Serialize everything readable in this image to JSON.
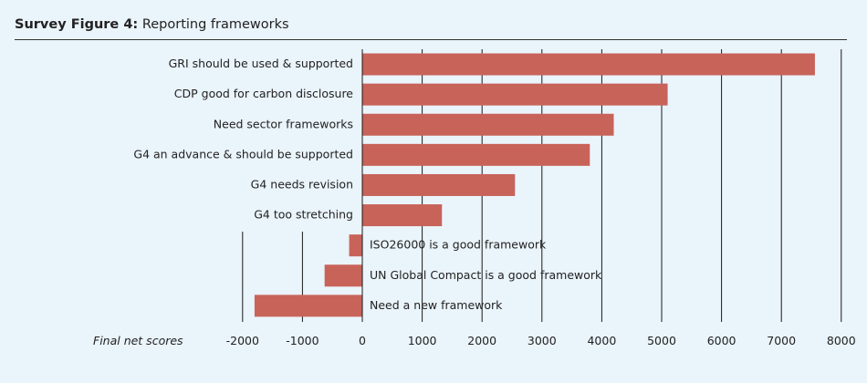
{
  "figure": {
    "label": "Survey Figure 4:",
    "title": "Reporting frameworks"
  },
  "colors": {
    "background": "#eaf4fb",
    "bar": "#c8635a",
    "grid": "#1a1a1a",
    "text": "#222222"
  },
  "chart_data": {
    "type": "bar",
    "orientation": "horizontal",
    "categories": [
      "GRI should be used & supported",
      "CDP good for carbon disclosure",
      "Need sector frameworks",
      "G4 an advance & should be supported",
      "G4 needs revision",
      "G4 too stretching",
      "ISO26000 is a good framework",
      "UN Global Compact is a good framework",
      "Need a new framework"
    ],
    "values": [
      7560,
      5100,
      4200,
      3800,
      2550,
      1330,
      -220,
      -630,
      -1800
    ],
    "xlabel": "Final net scores",
    "xlim": [
      -2000,
      8000
    ],
    "xticks": [
      -2000,
      -1000,
      0,
      1000,
      2000,
      3000,
      4000,
      5000,
      6000,
      7000,
      8000
    ],
    "grid": "vertical lines at major ticks",
    "legend": "none"
  }
}
